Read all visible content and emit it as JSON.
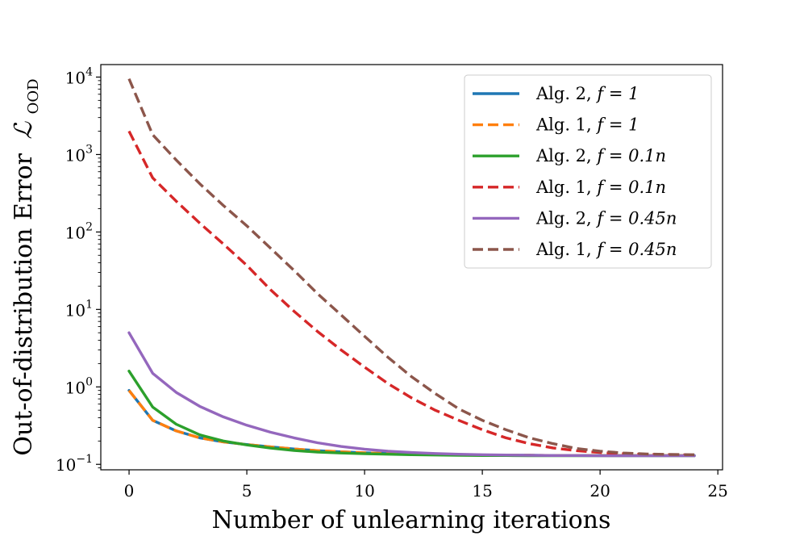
{
  "chart_data": {
    "type": "line",
    "title": "",
    "xlabel": "Number of unlearning iterations",
    "ylabel": "Out-of-distribution Error",
    "ylabel_symbol": "ℒ",
    "ylabel_subscript": "OOD",
    "yscale": "log",
    "xlim": [
      -1.2,
      25.2
    ],
    "ylim": [
      0.085,
      14500
    ],
    "x_ticks": [
      0,
      5,
      10,
      15,
      20,
      25
    ],
    "y_ticks": [
      {
        "value": 0.1,
        "base": "10",
        "exp": "−1"
      },
      {
        "value": 1,
        "base": "10",
        "exp": "0"
      },
      {
        "value": 10,
        "base": "10",
        "exp": "1"
      },
      {
        "value": 100,
        "base": "10",
        "exp": "2"
      },
      {
        "value": 1000,
        "base": "10",
        "exp": "3"
      },
      {
        "value": 10000,
        "base": "10",
        "exp": "4"
      }
    ],
    "grid": false,
    "legend_position": "top-right",
    "x": [
      0,
      1,
      2,
      3,
      4,
      5,
      6,
      7,
      8,
      9,
      10,
      11,
      12,
      13,
      14,
      15,
      16,
      17,
      18,
      19,
      20,
      21,
      22,
      23,
      24
    ],
    "series": [
      {
        "name": "Alg. 2, f = 1",
        "legend_alg": "Alg. 2, ",
        "legend_math": "f = 1",
        "color": "#1f77b4",
        "dash": "solid",
        "values": [
          0.9,
          0.37,
          0.27,
          0.22,
          0.195,
          0.18,
          0.168,
          0.158,
          0.15,
          0.145,
          0.141,
          0.138,
          0.136,
          0.134,
          0.133,
          0.132,
          0.131,
          0.131,
          0.13,
          0.13,
          0.13,
          0.13,
          0.13,
          0.13,
          0.13
        ]
      },
      {
        "name": "Alg. 1, f = 1",
        "legend_alg": "Alg. 1, ",
        "legend_math": "f = 1",
        "color": "#ff7f0e",
        "dash": "dashed",
        "values": [
          0.9,
          0.37,
          0.27,
          0.22,
          0.195,
          0.18,
          0.168,
          0.158,
          0.15,
          0.145,
          0.141,
          0.138,
          0.136,
          0.134,
          0.133,
          0.132,
          0.131,
          0.131,
          0.13,
          0.13,
          0.13,
          0.13,
          0.13,
          0.13,
          0.13
        ]
      },
      {
        "name": "Alg. 2, f = 0.1n",
        "legend_alg": "Alg. 2, ",
        "legend_math": "f = 0.1n",
        "color": "#2ca02c",
        "dash": "solid",
        "values": [
          1.6,
          0.55,
          0.33,
          0.24,
          0.2,
          0.178,
          0.162,
          0.151,
          0.144,
          0.14,
          0.137,
          0.135,
          0.133,
          0.132,
          0.131,
          0.13,
          0.13,
          0.129,
          0.129,
          0.129,
          0.129,
          0.129,
          0.129,
          0.129,
          0.129
        ]
      },
      {
        "name": "Alg. 1, f = 0.1n",
        "legend_alg": "Alg. 1, ",
        "legend_math": "f = 0.1n",
        "color": "#d62728",
        "dash": "dashed",
        "values": [
          2000,
          500,
          250,
          130,
          70,
          37,
          18,
          9.5,
          5.2,
          3.0,
          1.8,
          1.1,
          0.72,
          0.5,
          0.37,
          0.28,
          0.22,
          0.185,
          0.163,
          0.15,
          0.142,
          0.137,
          0.134,
          0.133,
          0.132
        ]
      },
      {
        "name": "Alg. 2, f = 0.45n",
        "legend_alg": "Alg. 2, ",
        "legend_math": "f = 0.45n",
        "color": "#9467bd",
        "dash": "solid",
        "values": [
          5,
          1.5,
          0.85,
          0.56,
          0.41,
          0.32,
          0.26,
          0.22,
          0.19,
          0.17,
          0.157,
          0.148,
          0.142,
          0.138,
          0.135,
          0.133,
          0.132,
          0.131,
          0.13,
          0.13,
          0.129,
          0.129,
          0.129,
          0.129,
          0.129
        ]
      },
      {
        "name": "Alg. 1, f = 0.45n",
        "legend_alg": "Alg. 1, ",
        "legend_math": "f = 0.45n",
        "color": "#8c564b",
        "dash": "dashed",
        "values": [
          9500,
          1800,
          850,
          420,
          220,
          120,
          62,
          32,
          16,
          8.5,
          4.5,
          2.4,
          1.35,
          0.82,
          0.52,
          0.37,
          0.28,
          0.22,
          0.185,
          0.16,
          0.148,
          0.14,
          0.136,
          0.134,
          0.133
        ]
      }
    ]
  }
}
